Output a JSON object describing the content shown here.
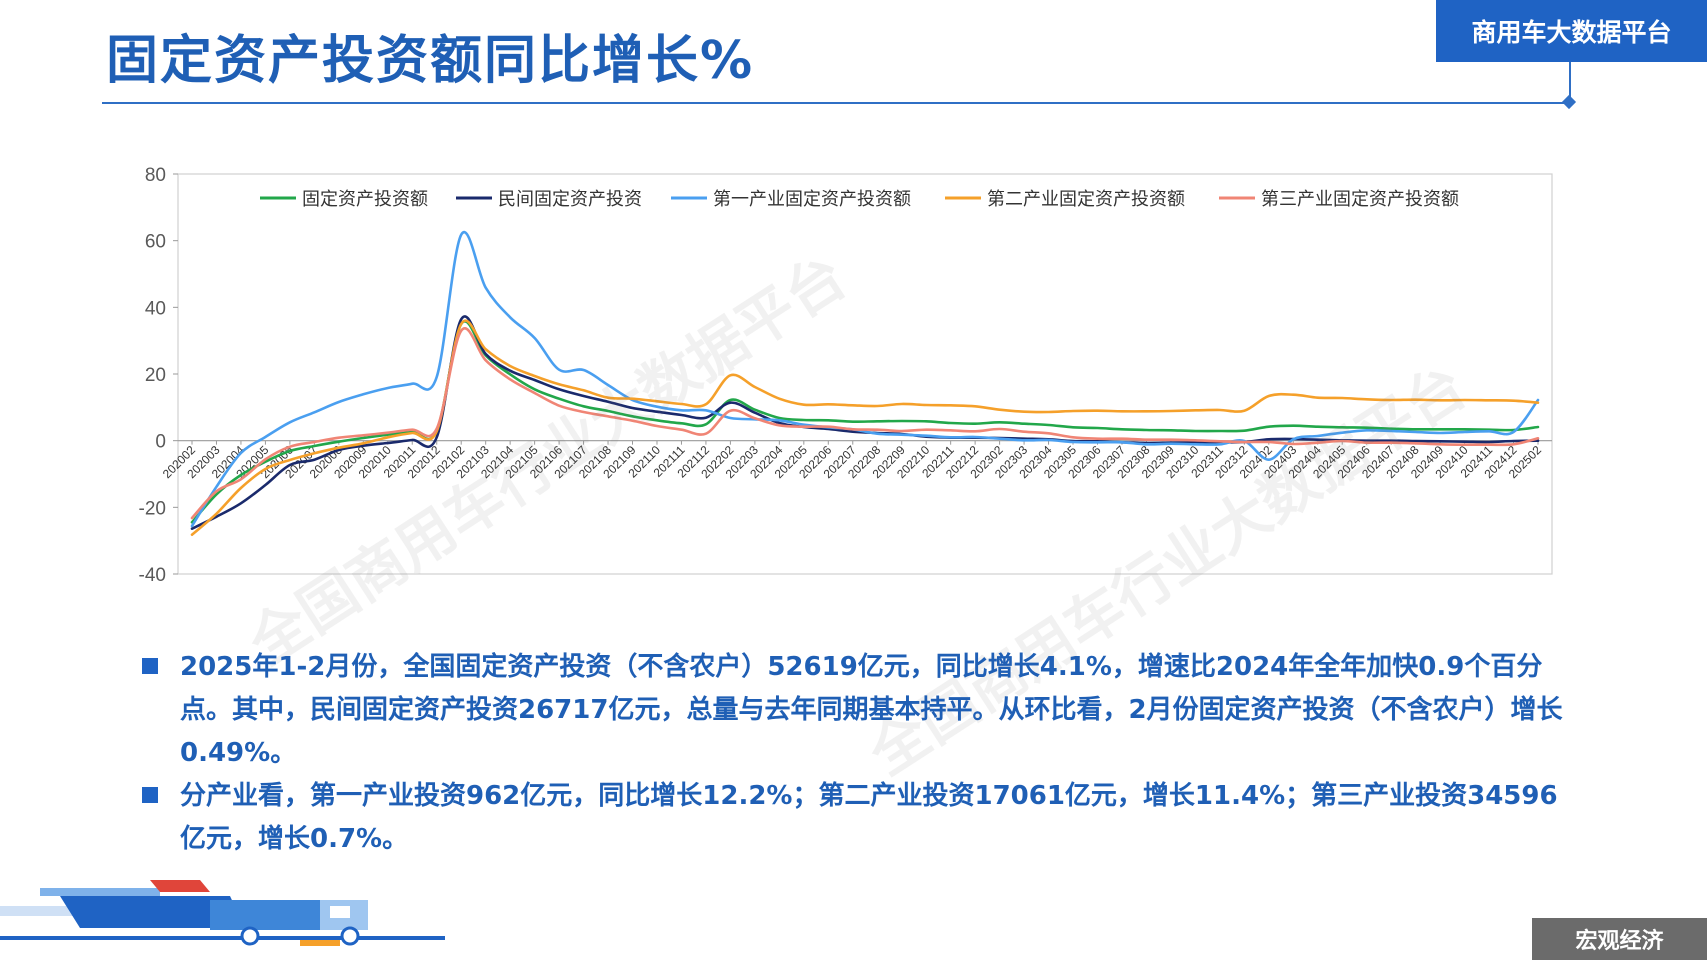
{
  "header": {
    "title": "固定资产投资额同比增长%",
    "brand": "商用车大数据平台"
  },
  "footer": {
    "section_tag": "宏观经济"
  },
  "watermarks": [
    "全国商用车行业大数据平台",
    "全国商用车行业大数据平台"
  ],
  "bullets": [
    "2025年1-2月份，全国固定资产投资（不含农户）52619亿元，同比增长4.1%，增速比2024年全年加快0.9个百分点。其中，民间固定资产投资26717亿元，总量与去年同期基本持平。从环比看，2月份固定资产投资（不含农户）增长0.49%。",
    "分产业看，第一产业投资962亿元，同比增长12.2%；第二产业投资17061亿元，增长11.4%；第三产业投资34596亿元，增长0.7%。"
  ],
  "colors": {
    "accent": "#1f63c4",
    "text": "#1f5fb5"
  },
  "chart_data": {
    "type": "line",
    "ylim": [
      -40,
      80
    ],
    "yticks": [
      -40,
      -20,
      0,
      20,
      40,
      60,
      80
    ],
    "legend_position": "top",
    "grid": false,
    "categories": [
      "202002",
      "202003",
      "202004",
      "202005",
      "202006",
      "202007",
      "202008",
      "202009",
      "202010",
      "202011",
      "202012",
      "202102",
      "202103",
      "202104",
      "202105",
      "202106",
      "202107",
      "202108",
      "202109",
      "202110",
      "202111",
      "202112",
      "202202",
      "202203",
      "202204",
      "202205",
      "202206",
      "202207",
      "202208",
      "202209",
      "202210",
      "202211",
      "202212",
      "202302",
      "202303",
      "202304",
      "202305",
      "202306",
      "202307",
      "202308",
      "202309",
      "202310",
      "202311",
      "202312",
      "202402",
      "202403",
      "202404",
      "202405",
      "202406",
      "202407",
      "202408",
      "202409",
      "202410",
      "202411",
      "202412",
      "202502"
    ],
    "series": [
      {
        "name": "固定资产投资额",
        "color": "#22a74a",
        "values": [
          -24.5,
          -16.1,
          -10.3,
          -6.3,
          -3.1,
          -1.6,
          -0.3,
          0.8,
          1.8,
          2.6,
          2.9,
          35.0,
          25.6,
          19.9,
          15.4,
          12.6,
          10.3,
          8.9,
          7.3,
          6.1,
          5.2,
          4.9,
          12.2,
          9.3,
          6.8,
          6.2,
          6.1,
          5.7,
          5.8,
          5.9,
          5.8,
          5.3,
          5.1,
          5.5,
          5.1,
          4.7,
          4.0,
          3.8,
          3.4,
          3.2,
          3.1,
          2.9,
          2.9,
          3.0,
          4.2,
          4.5,
          4.2,
          4.0,
          3.9,
          3.6,
          3.4,
          3.4,
          3.4,
          3.3,
          3.2,
          4.1
        ]
      },
      {
        "name": "民间固定资产投资",
        "color": "#1a2a6c",
        "values": [
          -26.4,
          -22.8,
          -18.8,
          -13.3,
          -7.3,
          -5.7,
          -2.8,
          -1.5,
          -0.7,
          0.2,
          1.0,
          36.4,
          26.0,
          21.0,
          18.2,
          15.4,
          13.4,
          11.7,
          9.8,
          8.7,
          7.7,
          6.9,
          11.4,
          8.4,
          5.3,
          4.1,
          3.5,
          2.7,
          2.3,
          2.0,
          1.2,
          0.9,
          0.9,
          0.8,
          0.6,
          0.4,
          -0.1,
          -0.2,
          -0.5,
          -0.7,
          -0.6,
          -0.5,
          -0.5,
          -0.4,
          0.4,
          0.5,
          0.3,
          0.1,
          0.0,
          0.0,
          -0.1,
          -0.2,
          -0.3,
          -0.4,
          -0.1,
          0.0
        ]
      },
      {
        "name": "第一产业固定资产投资额",
        "color": "#4a9ff0",
        "values": [
          -25.6,
          -13.8,
          -3.7,
          1.1,
          5.5,
          8.5,
          11.6,
          13.9,
          15.8,
          17.1,
          19.1,
          61.8,
          45.9,
          37.0,
          30.8,
          21.3,
          21.2,
          16.7,
          12.2,
          10.2,
          9.1,
          9.1,
          6.8,
          6.4,
          6.1,
          4.8,
          4.0,
          3.4,
          2.1,
          1.8,
          1.5,
          1.0,
          1.1,
          0.6,
          0.1,
          0.2,
          -0.4,
          -0.5,
          -0.5,
          -1.1,
          -0.9,
          -1.1,
          -1.1,
          -0.1,
          -5.7,
          0.4,
          1.4,
          2.4,
          3.1,
          2.9,
          2.6,
          2.3,
          2.6,
          2.8,
          2.6,
          12.2
        ]
      },
      {
        "name": "第二产业固定资产投资额",
        "color": "#f5a02a",
        "values": [
          -28.2,
          -21.9,
          -14.2,
          -8.5,
          -5.8,
          -3.8,
          -2.1,
          -0.8,
          1.0,
          2.3,
          2.8,
          35.0,
          27.4,
          22.4,
          19.4,
          16.9,
          15.1,
          12.9,
          12.6,
          11.8,
          11.0,
          10.9,
          19.6,
          16.1,
          12.6,
          10.8,
          10.9,
          10.6,
          10.4,
          11.0,
          10.7,
          10.6,
          10.3,
          9.3,
          8.7,
          8.6,
          8.9,
          9.0,
          8.8,
          8.8,
          8.9,
          9.1,
          9.2,
          9.0,
          13.4,
          13.8,
          12.9,
          12.8,
          12.4,
          12.2,
          12.3,
          12.1,
          12.2,
          12.1,
          12.0,
          11.4
        ]
      },
      {
        "name": "第三产业固定资产投资额",
        "color": "#f08575",
        "values": [
          -23.2,
          -15.2,
          -11.6,
          -5.6,
          -1.8,
          -0.4,
          0.9,
          1.6,
          2.4,
          3.3,
          3.6,
          33.0,
          24.1,
          18.4,
          14.3,
          10.5,
          8.6,
          7.3,
          6.0,
          4.4,
          3.3,
          2.1,
          9.0,
          6.7,
          4.6,
          4.2,
          4.2,
          3.4,
          3.3,
          2.9,
          3.3,
          3.1,
          2.8,
          3.5,
          2.7,
          2.2,
          1.0,
          0.6,
          0.6,
          0.3,
          0.3,
          0.1,
          -0.2,
          -0.4,
          -0.4,
          -1.0,
          -0.6,
          -0.1,
          -0.6,
          -0.6,
          -0.8,
          -1.1,
          -1.2,
          -1.2,
          -1.1,
          0.7
        ]
      }
    ]
  }
}
